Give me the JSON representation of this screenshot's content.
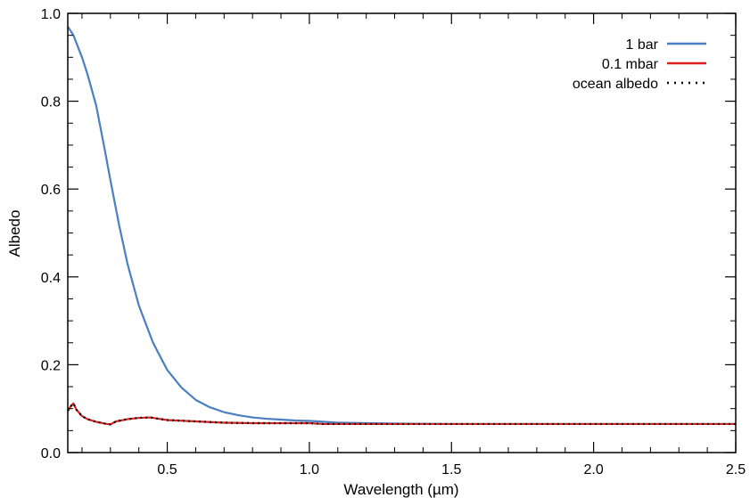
{
  "chart_data": {
    "type": "line",
    "title": "",
    "xlabel": "Wavelength (µm)",
    "ylabel": "Albedo",
    "xlim": [
      0.15,
      2.5
    ],
    "ylim": [
      0.0,
      1.0
    ],
    "xticks": [
      0.5,
      1.0,
      1.5,
      2.0,
      2.5
    ],
    "xtick_labels": [
      "0.5",
      "1.0",
      "1.5",
      "2.0",
      "2.5"
    ],
    "yticks": [
      0.0,
      0.2,
      0.4,
      0.6,
      0.8,
      1.0
    ],
    "ytick_labels": [
      "0.0",
      "0.2",
      "0.4",
      "0.6",
      "0.8",
      "1.0"
    ],
    "grid": false,
    "legend": "top-right",
    "series": [
      {
        "name": "1 bar",
        "color": "#4a7fc1",
        "dash": "solid",
        "x": [
          0.15,
          0.17,
          0.2,
          0.22,
          0.25,
          0.28,
          0.3,
          0.33,
          0.36,
          0.4,
          0.45,
          0.5,
          0.55,
          0.6,
          0.65,
          0.7,
          0.75,
          0.8,
          0.85,
          0.9,
          0.95,
          1.0,
          1.03,
          1.1,
          1.2,
          1.3,
          1.5,
          1.8,
          2.0,
          2.2,
          2.5
        ],
        "y": [
          0.97,
          0.95,
          0.9,
          0.86,
          0.79,
          0.69,
          0.62,
          0.52,
          0.43,
          0.335,
          0.25,
          0.188,
          0.148,
          0.12,
          0.103,
          0.092,
          0.085,
          0.08,
          0.077,
          0.075,
          0.073,
          0.072,
          0.071,
          0.068,
          0.067,
          0.066,
          0.065,
          0.065,
          0.065,
          0.065,
          0.065
        ]
      },
      {
        "name": "0.1 mbar",
        "color": "#e02020",
        "dash": "solid",
        "x": [
          0.15,
          0.16,
          0.17,
          0.18,
          0.2,
          0.22,
          0.25,
          0.28,
          0.3,
          0.32,
          0.36,
          0.4,
          0.44,
          0.47,
          0.5,
          0.6,
          0.7,
          0.8,
          0.9,
          1.0,
          1.05,
          1.1,
          1.5,
          2.0,
          2.5
        ],
        "y": [
          0.095,
          0.105,
          0.112,
          0.098,
          0.083,
          0.076,
          0.07,
          0.066,
          0.064,
          0.071,
          0.076,
          0.079,
          0.08,
          0.077,
          0.074,
          0.071,
          0.068,
          0.067,
          0.067,
          0.067,
          0.065,
          0.065,
          0.065,
          0.065,
          0.065
        ]
      },
      {
        "name": "ocean albedo",
        "color": "#000000",
        "dash": "dotted",
        "x": [
          0.15,
          0.16,
          0.17,
          0.18,
          0.2,
          0.22,
          0.25,
          0.28,
          0.3,
          0.32,
          0.36,
          0.4,
          0.44,
          0.47,
          0.5,
          0.6,
          0.7,
          0.8,
          0.9,
          1.0,
          1.05,
          1.1,
          1.5,
          2.0,
          2.5
        ],
        "y": [
          0.095,
          0.105,
          0.112,
          0.098,
          0.083,
          0.076,
          0.07,
          0.066,
          0.064,
          0.071,
          0.076,
          0.079,
          0.08,
          0.077,
          0.074,
          0.071,
          0.068,
          0.067,
          0.067,
          0.067,
          0.065,
          0.065,
          0.065,
          0.065,
          0.065
        ]
      }
    ]
  }
}
